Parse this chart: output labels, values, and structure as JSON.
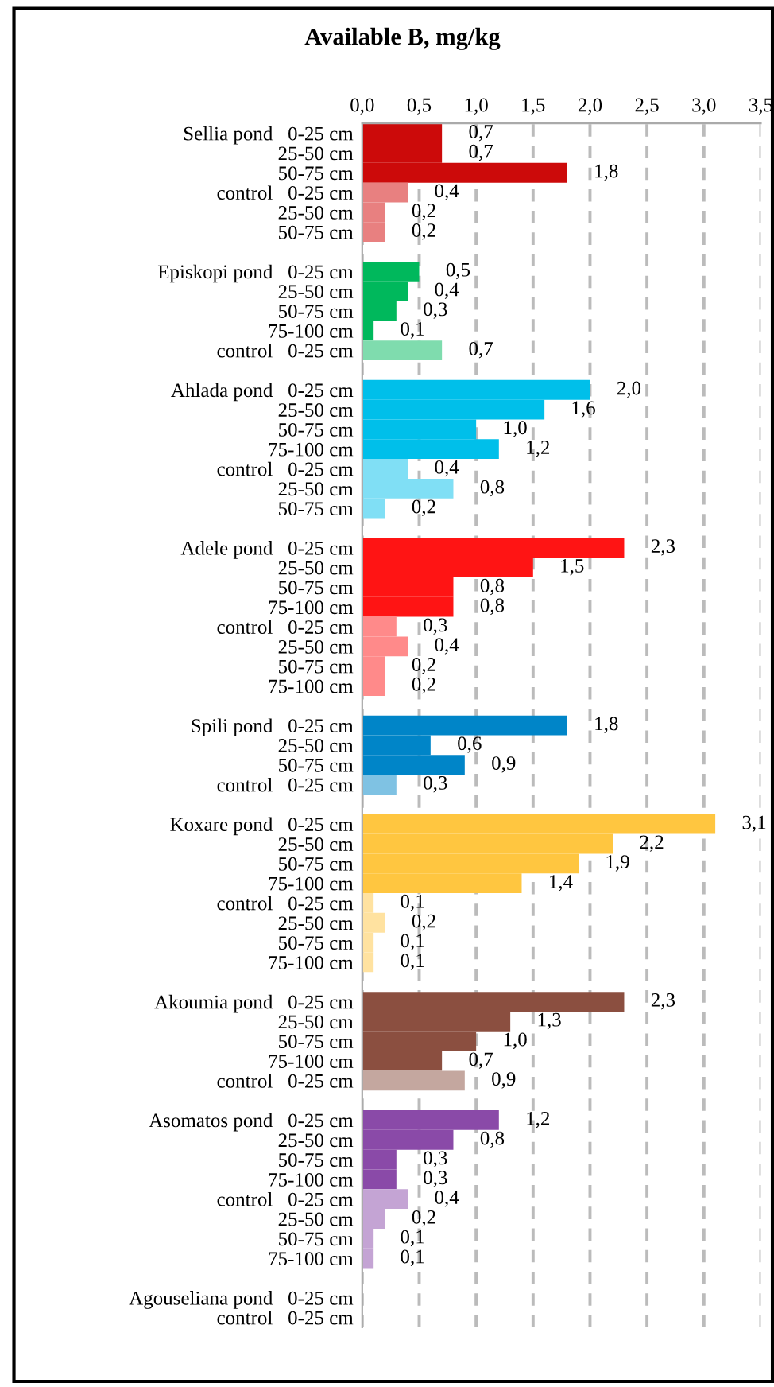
{
  "chart_data": {
    "type": "bar",
    "orientation": "horizontal",
    "title": "Available B, mg/kg",
    "categories": [
      "Sellia pond   0-25 cm",
      "25-50 cm",
      "50-75 cm",
      "control   0-25 cm",
      "25-50 cm",
      "50-75 cm",
      null,
      "Episkopi pond   0-25 cm",
      "25-50 cm",
      "50-75 cm",
      "75-100 cm",
      "control   0-25 cm",
      null,
      "Ahlada pond   0-25 cm",
      "25-50 cm",
      "50-75 cm",
      "75-100 cm",
      "control   0-25 cm",
      "25-50 cm",
      "50-75 cm",
      null,
      "Adele pond   0-25 cm",
      "25-50 cm",
      "50-75 cm",
      "75-100 cm",
      "control   0-25 cm",
      "25-50 cm",
      "50-75 cm",
      "75-100 cm",
      null,
      "Spili pond   0-25 cm",
      "25-50 cm",
      "50-75 cm",
      "control   0-25 cm",
      null,
      "Koxare pond   0-25 cm",
      "25-50 cm",
      "50-75 cm",
      "75-100 cm",
      "control   0-25 cm",
      "25-50 cm",
      "50-75 cm",
      "75-100 cm",
      null,
      "Akoumia pond   0-25 cm",
      "25-50 cm",
      "50-75 cm",
      "75-100 cm",
      "control   0-25 cm",
      null,
      "Asomatos pond   0-25 cm",
      "25-50 cm",
      "50-75 cm",
      "75-100 cm",
      "control   0-25 cm",
      "25-50 cm",
      "50-75 cm",
      "75-100 cm",
      null,
      "Agouseliana pond   0-25 cm",
      "control   0-25 cm"
    ],
    "values": [
      0.7,
      0.7,
      1.8,
      0.4,
      0.2,
      0.2,
      null,
      0.5,
      0.4,
      0.3,
      0.1,
      0.7,
      null,
      2.0,
      1.6,
      1.0,
      1.2,
      0.4,
      0.8,
      0.2,
      null,
      2.3,
      1.5,
      0.8,
      0.8,
      0.3,
      0.4,
      0.2,
      0.2,
      null,
      1.8,
      0.6,
      0.9,
      0.3,
      null,
      3.1,
      2.2,
      1.9,
      1.4,
      0.1,
      0.2,
      0.1,
      0.1,
      null,
      2.3,
      1.3,
      1.0,
      0.7,
      0.9,
      null,
      1.2,
      0.8,
      0.3,
      0.3,
      0.4,
      0.2,
      0.1,
      0.1,
      null,
      null,
      null
    ],
    "value_labels": [
      "0,7",
      "0,7",
      "1,8",
      "0,4",
      "0,2",
      "0,2",
      null,
      "0,5",
      "0,4",
      "0,3",
      "0,1",
      "0,7",
      null,
      "2,0",
      "1,6",
      "1,0",
      "1,2",
      "0,4",
      "0,8",
      "0,2",
      null,
      "2,3",
      "1,5",
      "0,8",
      "0,8",
      "0,3",
      "0,4",
      "0,2",
      "0,2",
      null,
      "1,8",
      "0,6",
      "0,9",
      "0,3",
      null,
      "3,1",
      "2,2",
      "1,9",
      "1,4",
      "0,1",
      "0,2",
      "0,1",
      "0,1",
      null,
      "2,3",
      "1,3",
      "1,0",
      "0,7",
      "0,9",
      null,
      "1,2",
      "0,8",
      "0,3",
      "0,3",
      "0,4",
      "0,2",
      "0,1",
      "0,1",
      null,
      null,
      null
    ],
    "colors": [
      "#cc0a0a",
      "#cc0a0a",
      "#cc0a0a",
      "#e88080",
      "#e88080",
      "#e88080",
      null,
      "#00b85c",
      "#00b85c",
      "#00b85c",
      "#00b85c",
      "#7fdcae",
      null,
      "#00bfea",
      "#00bfea",
      "#00bfea",
      "#00bfea",
      "#80dff5",
      "#80dff5",
      "#80dff5",
      null,
      "#ff1414",
      "#ff1414",
      "#ff1414",
      "#ff1414",
      "#ff8a8a",
      "#ff8a8a",
      "#ff8a8a",
      "#ff8a8a",
      null,
      "#0085c8",
      "#0085c8",
      "#0085c8",
      "#7fc2e3",
      null,
      "#ffc640",
      "#ffc640",
      "#ffc640",
      "#ffc640",
      "#ffe2a0",
      "#ffe2a0",
      "#ffe2a0",
      "#ffe2a0",
      null,
      "#8b4f40",
      "#8b4f40",
      "#8b4f40",
      "#8b4f40",
      "#c4a79f",
      null,
      "#8a4aa8",
      "#8a4aa8",
      "#8a4aa8",
      "#8a4aa8",
      "#c4a4d4",
      "#c4a4d4",
      "#c4a4d4",
      "#c4a4d4",
      null,
      null,
      null
    ],
    "xlim": [
      0,
      3.5
    ],
    "xticks": [
      {
        "value": 0,
        "label": "0,0"
      },
      {
        "value": 0.5,
        "label": "0,5"
      },
      {
        "value": 1.0,
        "label": "1,0"
      },
      {
        "value": 1.5,
        "label": "1,5"
      },
      {
        "value": 2.0,
        "label": "2,0"
      },
      {
        "value": 2.5,
        "label": "2,5"
      },
      {
        "value": 3.0,
        "label": "3,0"
      },
      {
        "value": 3.5,
        "label": "3,5"
      }
    ],
    "grid": "x"
  }
}
